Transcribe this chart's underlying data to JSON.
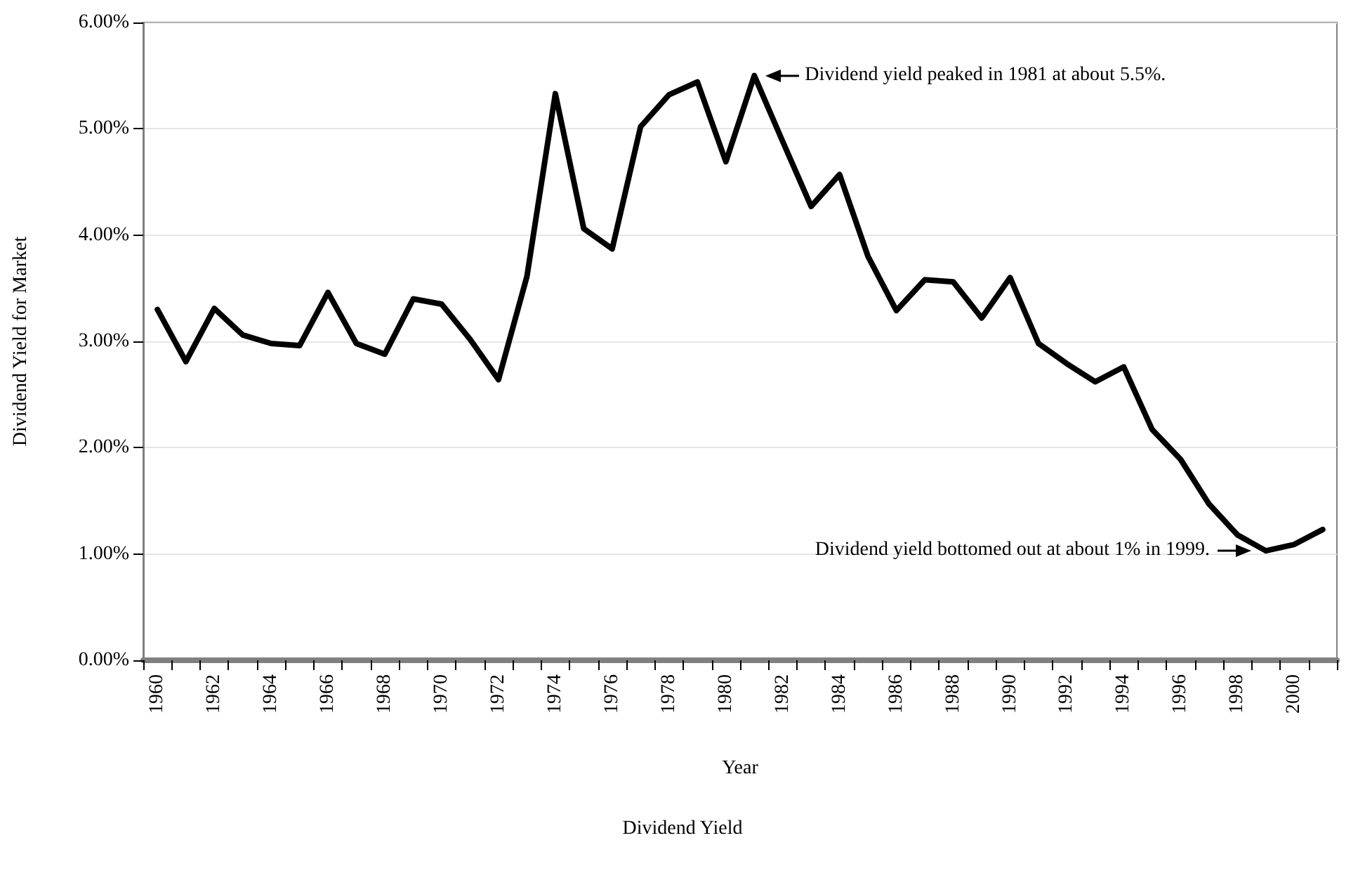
{
  "chart_data": {
    "type": "line",
    "title": "Dividend Yield",
    "xlabel": "Year",
    "ylabel": "Dividend Yield for Market",
    "x": [
      1960,
      1961,
      1962,
      1963,
      1964,
      1965,
      1966,
      1967,
      1968,
      1969,
      1970,
      1971,
      1972,
      1973,
      1974,
      1975,
      1976,
      1977,
      1978,
      1979,
      1980,
      1981,
      1982,
      1983,
      1984,
      1985,
      1986,
      1987,
      1988,
      1989,
      1990,
      1991,
      1992,
      1993,
      1994,
      1995,
      1996,
      1997,
      1998,
      1999,
      2000,
      2001
    ],
    "values": [
      3.3,
      2.81,
      3.31,
      3.06,
      2.98,
      2.96,
      3.46,
      2.98,
      2.88,
      3.4,
      3.35,
      3.02,
      2.64,
      3.61,
      5.33,
      4.06,
      3.87,
      5.02,
      5.32,
      5.44,
      4.69,
      5.5,
      4.88,
      4.27,
      4.57,
      3.8,
      3.29,
      3.58,
      3.56,
      3.22,
      3.6,
      2.98,
      2.79,
      2.62,
      2.76,
      2.17,
      1.89,
      1.47,
      1.18,
      1.03,
      1.09,
      1.23
    ],
    "color": "#000000",
    "marker": "none",
    "line_style": "solid",
    "grid": "y",
    "xlim": [
      1959.5,
      2001.5
    ],
    "xticks": [
      {
        "value": 1959.5,
        "label": null
      },
      1960,
      {
        "value": 1960.5,
        "label": null
      },
      {
        "value": 1961.5,
        "label": null
      },
      1962,
      {
        "value": 1962.5,
        "label": null
      },
      {
        "value": 1963.5,
        "label": null
      },
      1964,
      {
        "value": 1964.5,
        "label": null
      },
      {
        "value": 1965.5,
        "label": null
      },
      1966,
      {
        "value": 1966.5,
        "label": null
      },
      {
        "value": 1967.5,
        "label": null
      },
      1968,
      {
        "value": 1968.5,
        "label": null
      },
      {
        "value": 1969.5,
        "label": null
      },
      1970,
      {
        "value": 1970.5,
        "label": null
      },
      {
        "value": 1971.5,
        "label": null
      },
      1972,
      {
        "value": 1972.5,
        "label": null
      },
      {
        "value": 1973.5,
        "label": null
      },
      1974,
      {
        "value": 1974.5,
        "label": null
      },
      {
        "value": 1975.5,
        "label": null
      },
      1976,
      {
        "value": 1976.5,
        "label": null
      },
      {
        "value": 1977.5,
        "label": null
      },
      1978,
      {
        "value": 1978.5,
        "label": null
      },
      {
        "value": 1979.5,
        "label": null
      },
      1980,
      {
        "value": 1980.5,
        "label": null
      },
      {
        "value": 1981.5,
        "label": null
      },
      1982,
      {
        "value": 1982.5,
        "label": null
      },
      {
        "value": 1983.5,
        "label": null
      },
      1984,
      {
        "value": 1984.5,
        "label": null
      },
      {
        "value": 1985.5,
        "label": null
      },
      1986,
      {
        "value": 1986.5,
        "label": null
      },
      {
        "value": 1987.5,
        "label": null
      },
      1988,
      {
        "value": 1988.5,
        "label": null
      },
      {
        "value": 1989.5,
        "label": null
      },
      1990,
      {
        "value": 1990.5,
        "label": null
      },
      {
        "value": 1991.5,
        "label": null
      },
      1992,
      {
        "value": 1992.5,
        "label": null
      },
      {
        "value": 1993.5,
        "label": null
      },
      1994,
      {
        "value": 1994.5,
        "label": null
      },
      {
        "value": 1995.5,
        "label": null
      },
      1996,
      {
        "value": 1996.5,
        "label": null
      },
      {
        "value": 1997.5,
        "label": null
      },
      1998,
      {
        "value": 1998.5,
        "label": null
      },
      {
        "value": 1999.5,
        "label": null
      },
      2000,
      {
        "value": 2000.5,
        "label": null
      },
      {
        "value": 2001.5,
        "label": null
      }
    ],
    "ylim": [
      0,
      6
    ],
    "yticks": [
      {
        "value": 0,
        "label": "0.00%"
      },
      {
        "value": 1,
        "label": "1.00%"
      },
      {
        "value": 2,
        "label": "2.00%"
      },
      {
        "value": 3,
        "label": "3.00%"
      },
      {
        "value": 4,
        "label": "4.00%"
      },
      {
        "value": 5,
        "label": "5.00%"
      },
      {
        "value": 6,
        "label": "6.00%"
      }
    ],
    "annotations": [
      {
        "text": "Dividend yield peaked in 1981 at about 5.5%.",
        "x": 1981,
        "y": 5.5
      },
      {
        "text": "Dividend yield bottomed out at about 1% in 1999.",
        "x": 1999,
        "y": 1.03
      }
    ]
  }
}
